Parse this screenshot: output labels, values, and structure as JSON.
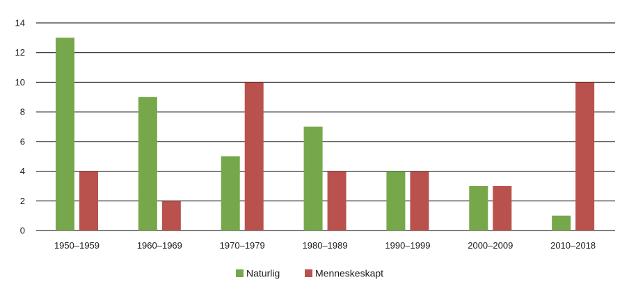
{
  "chart_data": {
    "type": "bar",
    "title": "",
    "xlabel": "",
    "ylabel": "",
    "categories": [
      "1950–1959",
      "1960–1969",
      "1970–1979",
      "1980–1989",
      "1990–1999",
      "2000–2009",
      "2010–2018"
    ],
    "series": [
      {
        "name": "Naturlig",
        "color": "#76a84b",
        "values": [
          13,
          9,
          5,
          7,
          4,
          3,
          1
        ]
      },
      {
        "name": "Menneskeskapt",
        "color": "#b9524c",
        "values": [
          4,
          2,
          10,
          4,
          4,
          3,
          10
        ]
      }
    ],
    "ylim": [
      0,
      14
    ],
    "yticks": [
      0,
      2,
      4,
      6,
      8,
      10,
      12,
      14
    ],
    "grid": true,
    "legend_position": "bottom-center"
  }
}
